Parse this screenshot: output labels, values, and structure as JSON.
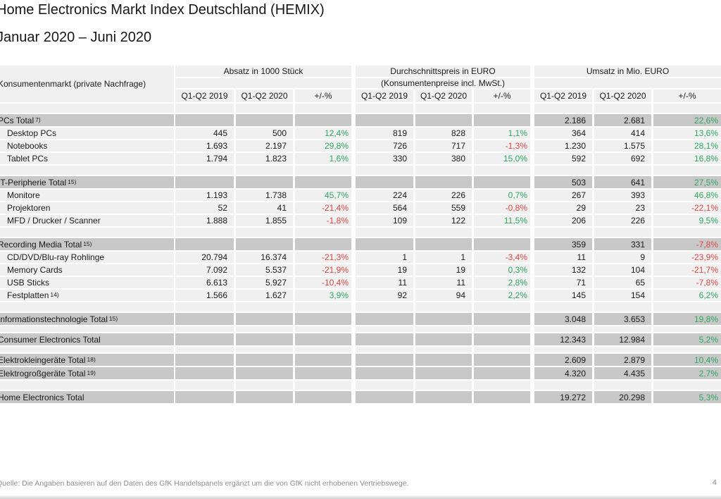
{
  "title": "Home Electronics Markt Index Deutschland (HEMIX)",
  "subtitle": "Januar 2020 – Juni 2020",
  "footer": {
    "source": "Quelle: Die Angaben basieren auf den Daten des GfK Handelspanels ergänzt um die von GfK nicht erhobenen Vertriebswege.",
    "page": "4"
  },
  "colors": {
    "positive": "#2ea75f",
    "negative": "#de4642",
    "total_row_bg": "#c8c8c8",
    "row_bg": "#f0f0f0"
  },
  "table": {
    "row_label_header": "Konsumentenmarkt (private Nachfrage)",
    "groups": [
      {
        "label": "Absatz in 1000 Stück",
        "sublabel": ""
      },
      {
        "label": "Durchschnittspreis in EURO",
        "sublabel": "(Konsumentenpreise incl. MwSt.)"
      },
      {
        "label": "Umsatz in Mio. EURO",
        "sublabel": ""
      }
    ],
    "columns": [
      "Q1-Q2 2019",
      "Q1-Q2 2020",
      "+/-%"
    ],
    "rows": [
      {
        "type": "spacer"
      },
      {
        "type": "total",
        "label": "PCs Total",
        "sup": "7)",
        "cells": [
          "",
          "",
          "",
          "",
          "",
          "",
          "2.186",
          "2.681",
          "22,6%"
        ]
      },
      {
        "type": "item",
        "label": "Desktop PCs",
        "cells": [
          "445",
          "500",
          "12,4%",
          "819",
          "828",
          "1,1%",
          "364",
          "414",
          "13,6%"
        ]
      },
      {
        "type": "item",
        "label": "Notebooks",
        "cells": [
          "1.693",
          "2.197",
          "29,8%",
          "726",
          "717",
          "-1,3%",
          "1.230",
          "1.575",
          "28,1%"
        ]
      },
      {
        "type": "item",
        "label": "Tablet PCs",
        "cells": [
          "1.794",
          "1.823",
          "1,6%",
          "330",
          "380",
          "15,0%",
          "592",
          "692",
          "16,8%"
        ]
      },
      {
        "type": "spacer"
      },
      {
        "type": "total",
        "label": "IT-Peripherie Total",
        "sup": "15)",
        "cells": [
          "",
          "",
          "",
          "",
          "",
          "",
          "503",
          "641",
          "27,5%"
        ]
      },
      {
        "type": "item",
        "label": "Monitore",
        "cells": [
          "1.193",
          "1.738",
          "45,7%",
          "224",
          "226",
          "0,7%",
          "267",
          "393",
          "46,8%"
        ]
      },
      {
        "type": "item",
        "label": "Projektoren",
        "cells": [
          "52",
          "41",
          "-21,4%",
          "564",
          "559",
          "-0,8%",
          "29",
          "23",
          "-22,1%"
        ]
      },
      {
        "type": "item",
        "label": "MFD / Drucker / Scanner",
        "cells": [
          "1.888",
          "1.855",
          "-1,8%",
          "109",
          "122",
          "11,5%",
          "206",
          "226",
          "9,5%"
        ]
      },
      {
        "type": "spacer"
      },
      {
        "type": "total",
        "label": "Recording Media Total",
        "sup": "15)",
        "cells": [
          "",
          "",
          "",
          "",
          "",
          "",
          "359",
          "331",
          "-7,8%"
        ]
      },
      {
        "type": "item",
        "label": "CD/DVD/Blu-ray Rohlinge",
        "cells": [
          "20.794",
          "16.374",
          "-21,3%",
          "1",
          "1",
          "-3,4%",
          "11",
          "9",
          "-23,9%"
        ]
      },
      {
        "type": "item",
        "label": "Memory Cards",
        "cells": [
          "7.092",
          "5.537",
          "-21,9%",
          "19",
          "19",
          "0,3%",
          "132",
          "104",
          "-21,7%"
        ]
      },
      {
        "type": "item",
        "label": "USB Sticks",
        "cells": [
          "6.613",
          "5.927",
          "-10,4%",
          "11",
          "11",
          "2,8%",
          "71",
          "65",
          "-7,8%"
        ]
      },
      {
        "type": "item",
        "label": "Festplatten",
        "sup": "14)",
        "cells": [
          "1.566",
          "1.627",
          "3,9%",
          "92",
          "94",
          "2,2%",
          "145",
          "154",
          "6,2%"
        ]
      },
      {
        "type": "spacer"
      },
      {
        "type": "total",
        "label": "Informationstechnologie Total",
        "sup": "15)",
        "cells": [
          "",
          "",
          "",
          "",
          "",
          "",
          "3.048",
          "3.653",
          "19,8%"
        ]
      },
      {
        "type": "spacer-sm"
      },
      {
        "type": "total",
        "label": "Consumer Electronics Total",
        "cells": [
          "",
          "",
          "",
          "",
          "",
          "",
          "12.343",
          "12.984",
          "5,2%"
        ]
      },
      {
        "type": "spacer-sm"
      },
      {
        "type": "total",
        "label": "Elektrokleingeräte Total",
        "sup": "18)",
        "cells": [
          "",
          "",
          "",
          "",
          "",
          "",
          "2.609",
          "2.879",
          "10,4%"
        ]
      },
      {
        "type": "total",
        "label": "Elektrogroßgeräte Total",
        "sup": "19)",
        "cells": [
          "",
          "",
          "",
          "",
          "",
          "",
          "4.320",
          "4.435",
          "2,7%"
        ]
      },
      {
        "type": "spacer"
      },
      {
        "type": "total",
        "label": "Home Electronics Total",
        "cells": [
          "",
          "",
          "",
          "",
          "",
          "",
          "19.272",
          "20.298",
          "5,3%"
        ]
      }
    ]
  }
}
